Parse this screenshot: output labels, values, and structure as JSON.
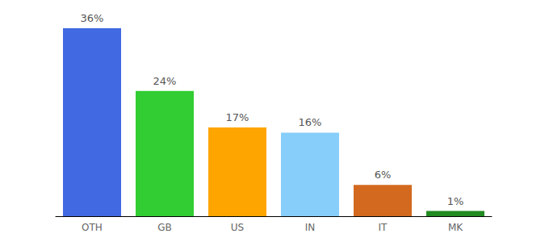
{
  "chart_data": {
    "type": "bar",
    "categories": [
      "OTH",
      "GB",
      "US",
      "IN",
      "IT",
      "MK"
    ],
    "values": [
      36,
      24,
      17,
      16,
      6,
      1
    ],
    "value_labels": [
      "36%",
      "24%",
      "17%",
      "16%",
      "6%",
      "1%"
    ],
    "colors": [
      "#4169e1",
      "#32cd32",
      "#ffa500",
      "#87cefa",
      "#d2691e",
      "#228b22"
    ],
    "data_labels": true,
    "tick_labels": "x",
    "grid": false
  }
}
